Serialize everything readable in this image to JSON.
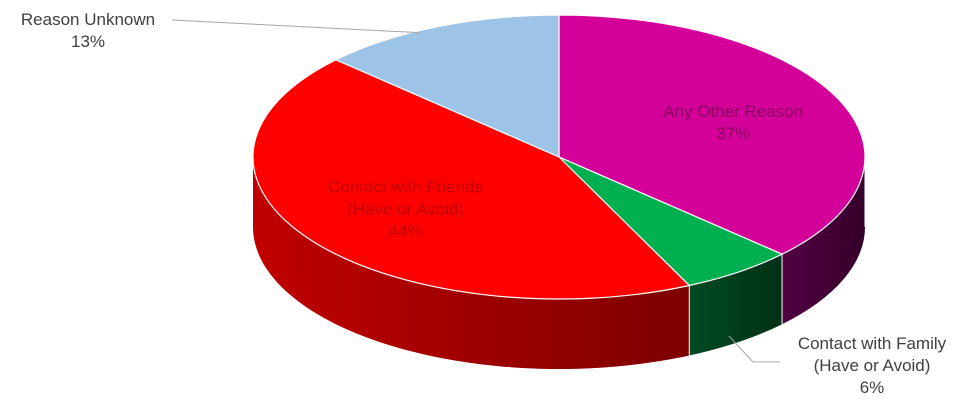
{
  "chart_data": {
    "type": "pie",
    "style": "3d",
    "title": "",
    "slices": [
      {
        "lines": [
          "Any Other Reason"
        ],
        "value": 37,
        "value_label": "37%",
        "top_color": "#d4009a",
        "side_color": "#520041",
        "label_color": "#8a0062",
        "label_placement": "inside"
      },
      {
        "lines": [
          "Contact with Family",
          "(Have or Avoid)"
        ],
        "value": 6,
        "value_label": "6%",
        "top_color": "#00b050",
        "side_color": "#004a22",
        "label_color": "#404040",
        "label_placement": "outside"
      },
      {
        "lines": [
          "Contact with Friends",
          "(Have or Avoid)"
        ],
        "value": 44,
        "value_label": "44%",
        "top_color": "#ff0000",
        "side_color": "#c00000",
        "label_color": "#c00000",
        "label_placement": "inside"
      },
      {
        "lines": [
          "Reason Unknown"
        ],
        "value": 13,
        "value_label": "13%",
        "top_color": "#9dc3e6",
        "side_color": "#6f8faf",
        "label_color": "#404040",
        "label_placement": "outside"
      }
    ]
  }
}
